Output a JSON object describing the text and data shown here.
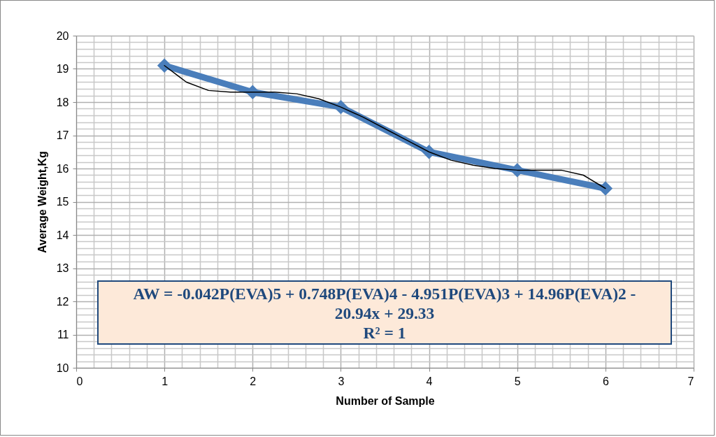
{
  "chart_data": {
    "type": "line",
    "xlabel": "Number of Sample",
    "ylabel": "Average Weight,Kg",
    "x": [
      1,
      2,
      3,
      4,
      5,
      6
    ],
    "series": [
      {
        "color": "#4a7ebb",
        "values": [
          19.1,
          18.3,
          17.85,
          16.5,
          15.95,
          15.4
        ],
        "marker": "diamond"
      },
      {
        "type": "line",
        "color": "#000000",
        "marker": "none",
        "x": [
          1,
          1.25,
          1.5,
          1.75,
          2,
          2.25,
          2.5,
          2.75,
          3,
          3.25,
          3.5,
          3.75,
          4,
          4.25,
          4.5,
          4.75,
          5,
          5.25,
          5.5,
          5.75,
          6
        ],
        "values": [
          19.1,
          18.6,
          18.35,
          18.3,
          18.3,
          18.3,
          18.25,
          18.1,
          17.85,
          17.55,
          17.2,
          16.85,
          16.5,
          16.25,
          16.1,
          16.0,
          15.95,
          15.95,
          15.95,
          15.8,
          15.4
        ]
      }
    ],
    "xlim": [
      0,
      7
    ],
    "xticks": [
      0,
      1,
      2,
      3,
      4,
      5,
      6,
      7
    ],
    "ylim": [
      10,
      20
    ],
    "yticks": [
      10,
      11,
      12,
      13,
      14,
      15,
      16,
      17,
      18,
      19,
      20
    ],
    "grid": true,
    "annotations": [
      "AW = -0.042P(EVA)5 + 0.748P(EVA)4 - 4.951P(EVA)3 + 14.96P(EVA)2 - 20.94x + 29.33",
      "R² = 1"
    ]
  }
}
